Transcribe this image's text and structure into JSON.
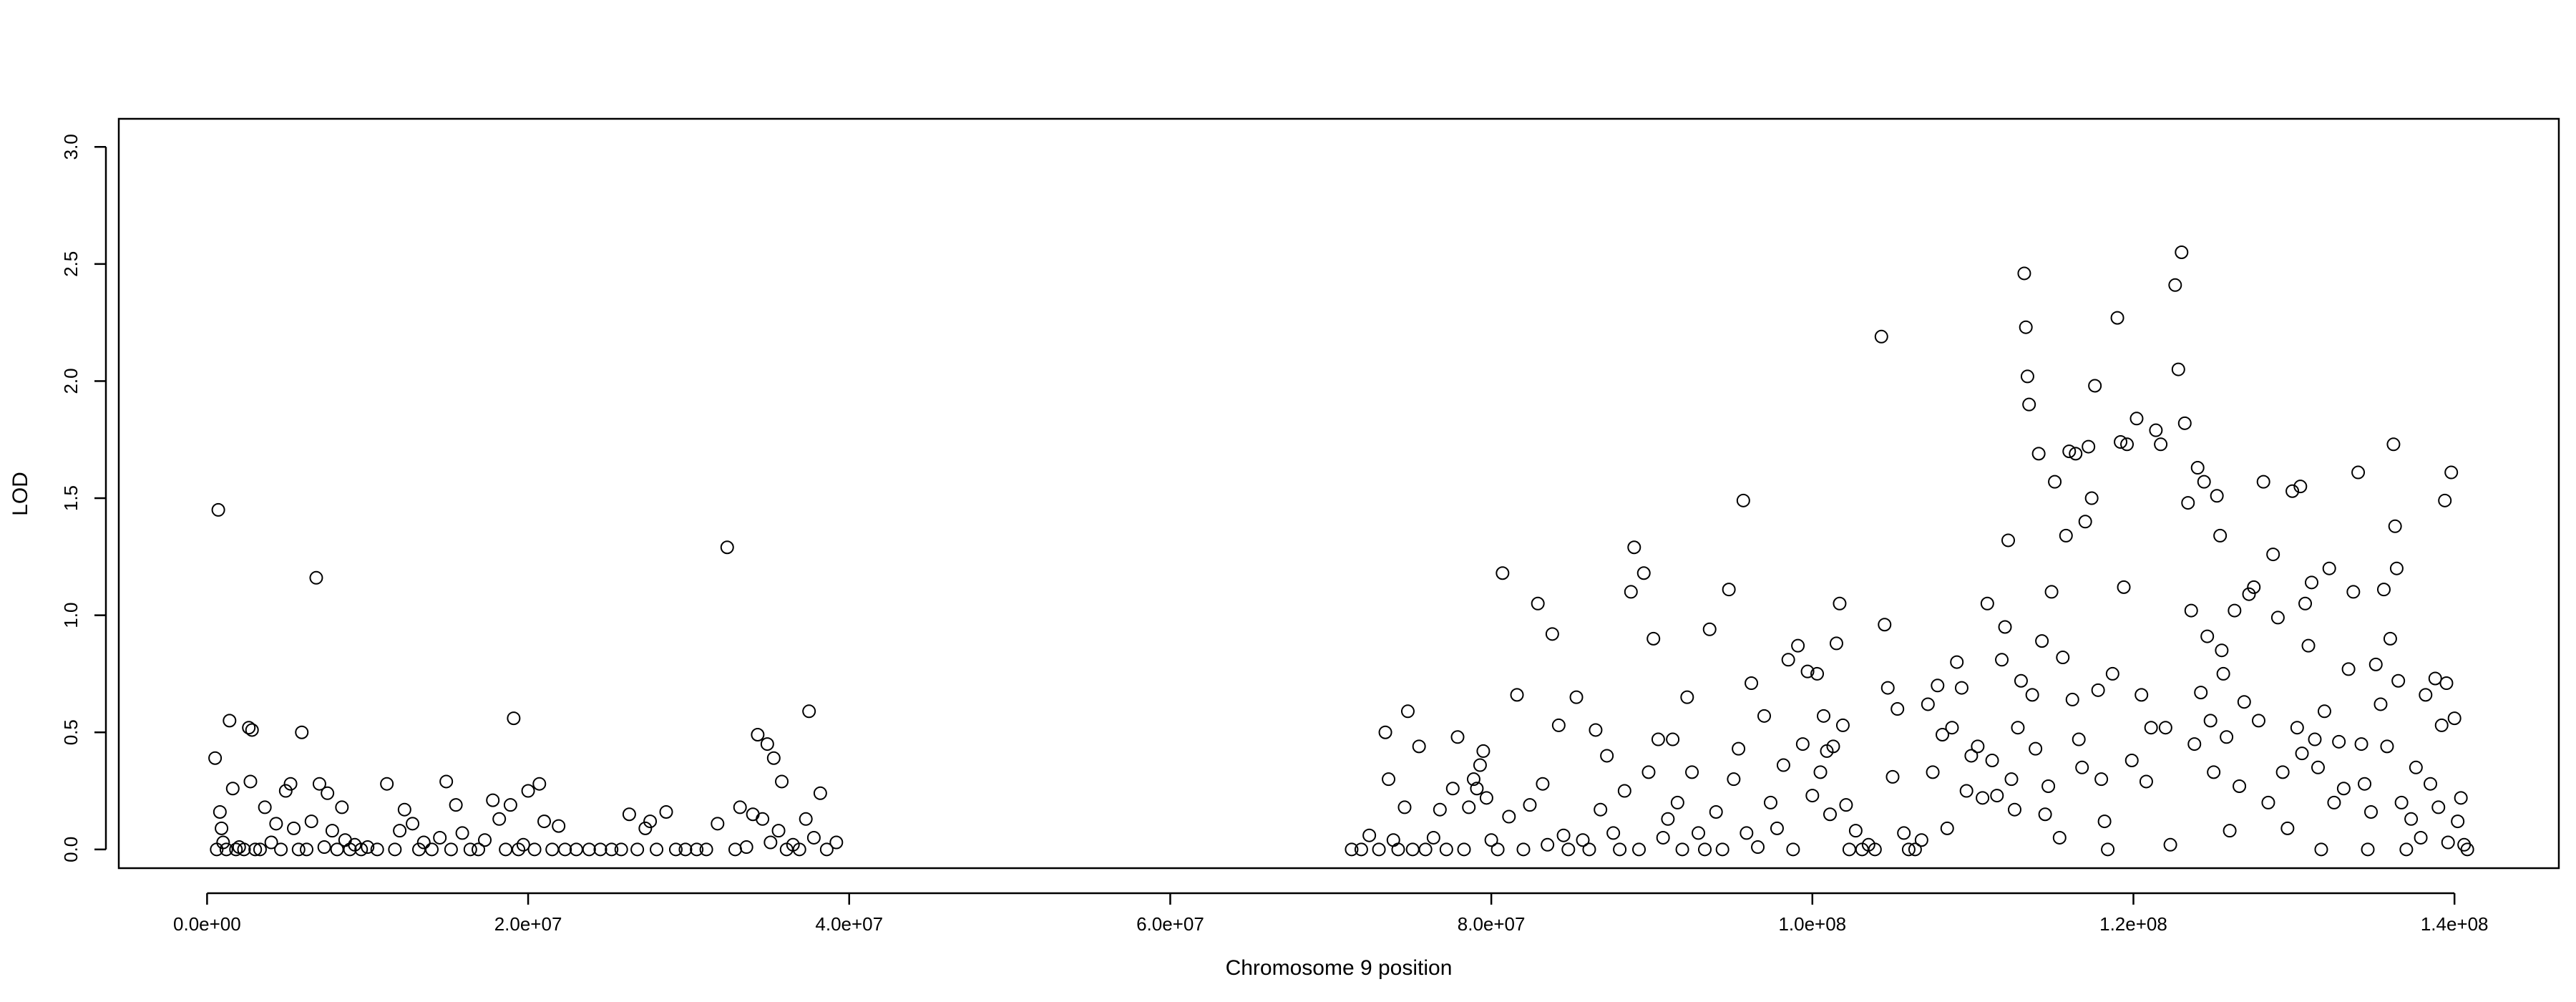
{
  "chart_data": {
    "type": "scatter",
    "title": "",
    "xlabel": "Chromosome 9 position",
    "ylabel": "LOD",
    "xlim": [
      -5500000,
      146500000
    ],
    "ylim": [
      -0.08,
      3.12
    ],
    "x_ticks": [
      0,
      20000000,
      40000000,
      60000000,
      80000000,
      100000000,
      120000000,
      140000000
    ],
    "x_tick_labels": [
      "0.0e+00",
      "2.0e+07",
      "4.0e+07",
      "6.0e+07",
      "8.0e+07",
      "1.0e+08",
      "1.2e+08",
      "1.4e+08"
    ],
    "y_ticks": [
      0,
      0.5,
      1,
      1.5,
      2,
      2.5,
      3
    ],
    "y_tick_labels": [
      "0.0",
      "0.5",
      "1.0",
      "1.5",
      "2.0",
      "2.5",
      "3.0"
    ],
    "grid": false,
    "legend": "none",
    "marker": "open-circle",
    "marker_color": "#000000",
    "points": [
      [
        500000,
        0.39
      ],
      [
        600000,
        0.0
      ],
      [
        700000,
        1.45
      ],
      [
        800000,
        0.16
      ],
      [
        900000,
        0.09
      ],
      [
        1000000,
        0.03
      ],
      [
        1200000,
        0.0
      ],
      [
        1400000,
        0.55
      ],
      [
        1600000,
        0.26
      ],
      [
        1800000,
        0.0
      ],
      [
        2000000,
        0.01
      ],
      [
        2300000,
        0.0
      ],
      [
        2600000,
        0.52
      ],
      [
        2700000,
        0.29
      ],
      [
        2800000,
        0.51
      ],
      [
        3000000,
        0.0
      ],
      [
        3300000,
        0.0
      ],
      [
        3600000,
        0.18
      ],
      [
        4000000,
        0.03
      ],
      [
        4300000,
        0.11
      ],
      [
        4600000,
        0.0
      ],
      [
        4900000,
        0.25
      ],
      [
        5200000,
        0.28
      ],
      [
        5400000,
        0.09
      ],
      [
        5700000,
        0.0
      ],
      [
        5900000,
        0.5
      ],
      [
        6200000,
        0.0
      ],
      [
        6500000,
        0.12
      ],
      [
        6800000,
        1.16
      ],
      [
        7000000,
        0.28
      ],
      [
        7300000,
        0.01
      ],
      [
        7500000,
        0.24
      ],
      [
        7800000,
        0.08
      ],
      [
        8100000,
        0.0
      ],
      [
        8400000,
        0.18
      ],
      [
        8600000,
        0.04
      ],
      [
        8900000,
        0.0
      ],
      [
        9200000,
        0.02
      ],
      [
        9600000,
        0.0
      ],
      [
        10000000,
        0.01
      ],
      [
        10600000,
        0.0
      ],
      [
        11200000,
        0.28
      ],
      [
        11700000,
        0.0
      ],
      [
        12000000,
        0.08
      ],
      [
        12300000,
        0.17
      ],
      [
        12800000,
        0.11
      ],
      [
        13200000,
        0.0
      ],
      [
        13500000,
        0.03
      ],
      [
        14000000,
        0.0
      ],
      [
        14500000,
        0.05
      ],
      [
        14900000,
        0.29
      ],
      [
        15200000,
        0.0
      ],
      [
        15500000,
        0.19
      ],
      [
        15900000,
        0.07
      ],
      [
        16400000,
        0.0
      ],
      [
        16900000,
        0.0
      ],
      [
        17300000,
        0.04
      ],
      [
        17800000,
        0.21
      ],
      [
        18200000,
        0.13
      ],
      [
        18600000,
        0.0
      ],
      [
        18900000,
        0.19
      ],
      [
        19100000,
        0.56
      ],
      [
        19400000,
        0.0
      ],
      [
        19700000,
        0.02
      ],
      [
        20000000,
        0.25
      ],
      [
        20400000,
        0.0
      ],
      [
        20700000,
        0.28
      ],
      [
        21000000,
        0.12
      ],
      [
        21500000,
        0.0
      ],
      [
        21900000,
        0.1
      ],
      [
        22300000,
        0.0
      ],
      [
        23000000,
        0.0
      ],
      [
        23800000,
        0.0
      ],
      [
        24500000,
        0.0
      ],
      [
        25200000,
        0.0
      ],
      [
        25800000,
        0.0
      ],
      [
        26300000,
        0.15
      ],
      [
        26800000,
        0.0
      ],
      [
        27300000,
        0.09
      ],
      [
        27600000,
        0.12
      ],
      [
        28000000,
        0.0
      ],
      [
        28600000,
        0.16
      ],
      [
        29200000,
        0.0
      ],
      [
        29800000,
        0.0
      ],
      [
        30500000,
        0.0
      ],
      [
        31100000,
        0.0
      ],
      [
        31800000,
        0.11
      ],
      [
        32400000,
        1.29
      ],
      [
        32900000,
        0.0
      ],
      [
        33200000,
        0.18
      ],
      [
        33600000,
        0.01
      ],
      [
        34000000,
        0.15
      ],
      [
        34300000,
        0.49
      ],
      [
        34600000,
        0.13
      ],
      [
        34900000,
        0.45
      ],
      [
        35100000,
        0.03
      ],
      [
        35300000,
        0.39
      ],
      [
        35600000,
        0.08
      ],
      [
        35800000,
        0.29
      ],
      [
        36100000,
        0.0
      ],
      [
        36500000,
        0.02
      ],
      [
        36900000,
        0.0
      ],
      [
        37300000,
        0.13
      ],
      [
        37500000,
        0.59
      ],
      [
        37800000,
        0.05
      ],
      [
        38200000,
        0.24
      ],
      [
        38600000,
        0.0
      ],
      [
        39200000,
        0.03
      ],
      [
        71300000,
        0.0
      ],
      [
        71900000,
        0.0
      ],
      [
        72400000,
        0.06
      ],
      [
        73000000,
        0.0
      ],
      [
        73400000,
        0.5
      ],
      [
        73600000,
        0.3
      ],
      [
        73900000,
        0.04
      ],
      [
        74200000,
        0.0
      ],
      [
        74600000,
        0.18
      ],
      [
        74800000,
        0.59
      ],
      [
        75100000,
        0.0
      ],
      [
        75500000,
        0.44
      ],
      [
        75900000,
        0.0
      ],
      [
        76400000,
        0.05
      ],
      [
        76800000,
        0.17
      ],
      [
        77200000,
        0.0
      ],
      [
        77600000,
        0.26
      ],
      [
        77900000,
        0.48
      ],
      [
        78300000,
        0.0
      ],
      [
        78600000,
        0.18
      ],
      [
        78900000,
        0.3
      ],
      [
        79100000,
        0.26
      ],
      [
        79300000,
        0.36
      ],
      [
        79500000,
        0.42
      ],
      [
        79700000,
        0.22
      ],
      [
        80000000,
        0.04
      ],
      [
        80400000,
        0.0
      ],
      [
        80700000,
        1.18
      ],
      [
        81100000,
        0.14
      ],
      [
        81600000,
        0.66
      ],
      [
        82000000,
        0.0
      ],
      [
        82400000,
        0.19
      ],
      [
        82900000,
        1.05
      ],
      [
        83200000,
        0.28
      ],
      [
        83500000,
        0.02
      ],
      [
        83800000,
        0.92
      ],
      [
        84200000,
        0.53
      ],
      [
        84500000,
        0.06
      ],
      [
        84800000,
        0.0
      ],
      [
        85300000,
        0.65
      ],
      [
        85700000,
        0.04
      ],
      [
        86100000,
        0.0
      ],
      [
        86500000,
        0.51
      ],
      [
        86800000,
        0.17
      ],
      [
        87200000,
        0.4
      ],
      [
        87600000,
        0.07
      ],
      [
        88000000,
        0.0
      ],
      [
        88300000,
        0.25
      ],
      [
        88700000,
        1.1
      ],
      [
        88900000,
        1.29
      ],
      [
        89200000,
        0.0
      ],
      [
        89500000,
        1.18
      ],
      [
        89800000,
        0.33
      ],
      [
        90100000,
        0.9
      ],
      [
        90400000,
        0.47
      ],
      [
        90700000,
        0.05
      ],
      [
        91000000,
        0.13
      ],
      [
        91300000,
        0.47
      ],
      [
        91600000,
        0.2
      ],
      [
        91900000,
        0.0
      ],
      [
        92200000,
        0.65
      ],
      [
        92500000,
        0.33
      ],
      [
        92900000,
        0.07
      ],
      [
        93300000,
        0.0
      ],
      [
        93600000,
        0.94
      ],
      [
        94000000,
        0.16
      ],
      [
        94400000,
        0.0
      ],
      [
        94800000,
        1.11
      ],
      [
        95100000,
        0.3
      ],
      [
        95400000,
        0.43
      ],
      [
        95700000,
        1.49
      ],
      [
        95900000,
        0.07
      ],
      [
        96200000,
        0.71
      ],
      [
        96600000,
        0.01
      ],
      [
        97000000,
        0.57
      ],
      [
        97400000,
        0.2
      ],
      [
        97800000,
        0.09
      ],
      [
        98200000,
        0.36
      ],
      [
        98500000,
        0.81
      ],
      [
        98800000,
        0.0
      ],
      [
        99100000,
        0.87
      ],
      [
        99400000,
        0.45
      ],
      [
        99700000,
        0.76
      ],
      [
        100000000,
        0.23
      ],
      [
        100300000,
        0.75
      ],
      [
        100500000,
        0.33
      ],
      [
        100700000,
        0.57
      ],
      [
        100900000,
        0.42
      ],
      [
        101100000,
        0.15
      ],
      [
        101300000,
        0.44
      ],
      [
        101500000,
        0.88
      ],
      [
        101700000,
        1.05
      ],
      [
        101900000,
        0.53
      ],
      [
        102100000,
        0.19
      ],
      [
        102300000,
        0.0
      ],
      [
        102700000,
        0.08
      ],
      [
        103100000,
        0.0
      ],
      [
        103500000,
        0.02
      ],
      [
        103900000,
        0.0
      ],
      [
        104300000,
        2.19
      ],
      [
        104500000,
        0.96
      ],
      [
        104700000,
        0.69
      ],
      [
        105000000,
        0.31
      ],
      [
        105300000,
        0.6
      ],
      [
        105700000,
        0.07
      ],
      [
        106000000,
        0.0
      ],
      [
        106400000,
        0.0
      ],
      [
        106800000,
        0.04
      ],
      [
        107200000,
        0.62
      ],
      [
        107500000,
        0.33
      ],
      [
        107800000,
        0.7
      ],
      [
        108100000,
        0.49
      ],
      [
        108400000,
        0.09
      ],
      [
        108700000,
        0.52
      ],
      [
        109000000,
        0.8
      ],
      [
        109300000,
        0.69
      ],
      [
        109600000,
        0.25
      ],
      [
        109900000,
        0.4
      ],
      [
        110300000,
        0.44
      ],
      [
        110600000,
        0.22
      ],
      [
        110900000,
        1.05
      ],
      [
        111200000,
        0.38
      ],
      [
        111500000,
        0.23
      ],
      [
        111800000,
        0.81
      ],
      [
        112000000,
        0.95
      ],
      [
        112200000,
        1.32
      ],
      [
        112400000,
        0.3
      ],
      [
        112600000,
        0.17
      ],
      [
        112800000,
        0.52
      ],
      [
        113000000,
        0.72
      ],
      [
        113200000,
        2.46
      ],
      [
        113300000,
        2.23
      ],
      [
        113400000,
        2.02
      ],
      [
        113500000,
        1.9
      ],
      [
        113700000,
        0.66
      ],
      [
        113900000,
        0.43
      ],
      [
        114100000,
        1.69
      ],
      [
        114300000,
        0.89
      ],
      [
        114500000,
        0.15
      ],
      [
        114700000,
        0.27
      ],
      [
        114900000,
        1.1
      ],
      [
        115100000,
        1.57
      ],
      [
        115400000,
        0.05
      ],
      [
        115600000,
        0.82
      ],
      [
        115800000,
        1.34
      ],
      [
        116000000,
        1.7
      ],
      [
        116200000,
        0.64
      ],
      [
        116400000,
        1.69
      ],
      [
        116600000,
        0.47
      ],
      [
        116800000,
        0.35
      ],
      [
        117000000,
        1.4
      ],
      [
        117200000,
        1.72
      ],
      [
        117400000,
        1.5
      ],
      [
        117600000,
        1.98
      ],
      [
        117800000,
        0.68
      ],
      [
        118000000,
        0.3
      ],
      [
        118200000,
        0.12
      ],
      [
        118400000,
        0.0
      ],
      [
        118700000,
        0.75
      ],
      [
        119000000,
        2.27
      ],
      [
        119200000,
        1.74
      ],
      [
        119400000,
        1.12
      ],
      [
        119600000,
        1.73
      ],
      [
        119900000,
        0.38
      ],
      [
        120200000,
        1.84
      ],
      [
        120500000,
        0.66
      ],
      [
        120800000,
        0.29
      ],
      [
        121100000,
        0.52
      ],
      [
        121400000,
        1.79
      ],
      [
        121700000,
        1.73
      ],
      [
        122000000,
        0.52
      ],
      [
        122300000,
        0.02
      ],
      [
        122600000,
        2.41
      ],
      [
        122800000,
        2.05
      ],
      [
        123000000,
        2.55
      ],
      [
        123200000,
        1.82
      ],
      [
        123400000,
        1.48
      ],
      [
        123600000,
        1.02
      ],
      [
        123800000,
        0.45
      ],
      [
        124000000,
        1.63
      ],
      [
        124200000,
        0.67
      ],
      [
        124400000,
        1.57
      ],
      [
        124600000,
        0.91
      ],
      [
        124800000,
        0.55
      ],
      [
        125000000,
        0.33
      ],
      [
        125200000,
        1.51
      ],
      [
        125400000,
        1.34
      ],
      [
        125500000,
        0.85
      ],
      [
        125600000,
        0.75
      ],
      [
        125800000,
        0.48
      ],
      [
        126000000,
        0.08
      ],
      [
        126300000,
        1.02
      ],
      [
        126600000,
        0.27
      ],
      [
        126900000,
        0.63
      ],
      [
        127200000,
        1.09
      ],
      [
        127500000,
        1.12
      ],
      [
        127800000,
        0.55
      ],
      [
        128100000,
        1.57
      ],
      [
        128400000,
        0.2
      ],
      [
        128700000,
        1.26
      ],
      [
        129000000,
        0.99
      ],
      [
        129300000,
        0.33
      ],
      [
        129600000,
        0.09
      ],
      [
        129900000,
        1.53
      ],
      [
        130200000,
        0.52
      ],
      [
        130400000,
        1.55
      ],
      [
        130500000,
        0.41
      ],
      [
        130700000,
        1.05
      ],
      [
        130900000,
        0.87
      ],
      [
        131100000,
        1.14
      ],
      [
        131300000,
        0.47
      ],
      [
        131500000,
        0.35
      ],
      [
        131700000,
        0.0
      ],
      [
        131900000,
        0.59
      ],
      [
        132200000,
        1.2
      ],
      [
        132500000,
        0.2
      ],
      [
        132800000,
        0.46
      ],
      [
        133100000,
        0.26
      ],
      [
        133400000,
        0.77
      ],
      [
        133700000,
        1.1
      ],
      [
        134000000,
        1.61
      ],
      [
        134200000,
        0.45
      ],
      [
        134400000,
        0.28
      ],
      [
        134600000,
        0.0
      ],
      [
        134800000,
        0.16
      ],
      [
        135100000,
        0.79
      ],
      [
        135400000,
        0.62
      ],
      [
        135600000,
        1.11
      ],
      [
        135800000,
        0.44
      ],
      [
        136000000,
        0.9
      ],
      [
        136200000,
        1.73
      ],
      [
        136300000,
        1.38
      ],
      [
        136400000,
        1.2
      ],
      [
        136500000,
        0.72
      ],
      [
        136700000,
        0.2
      ],
      [
        137000000,
        0.0
      ],
      [
        137300000,
        0.13
      ],
      [
        137600000,
        0.35
      ],
      [
        137900000,
        0.05
      ],
      [
        138200000,
        0.66
      ],
      [
        138500000,
        0.28
      ],
      [
        138800000,
        0.73
      ],
      [
        139000000,
        0.18
      ],
      [
        139200000,
        0.53
      ],
      [
        139400000,
        1.49
      ],
      [
        139500000,
        0.71
      ],
      [
        139600000,
        0.03
      ],
      [
        139800000,
        1.61
      ],
      [
        140000000,
        0.56
      ],
      [
        140200000,
        0.12
      ],
      [
        140400000,
        0.22
      ],
      [
        140600000,
        0.02
      ],
      [
        140800000,
        0.0
      ]
    ]
  }
}
